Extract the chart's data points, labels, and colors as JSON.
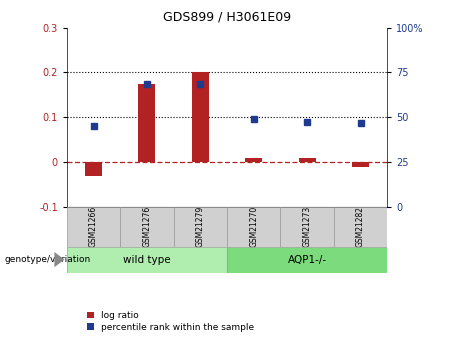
{
  "title": "GDS899 / H3061E09",
  "samples": [
    "GSM21266",
    "GSM21276",
    "GSM21279",
    "GSM21270",
    "GSM21273",
    "GSM21282"
  ],
  "group_labels": [
    "wild type",
    "AQP1-/-"
  ],
  "log_ratio": [
    -0.03,
    0.175,
    0.2,
    0.01,
    0.01,
    -0.01
  ],
  "percentile_rank_left": [
    0.08,
    0.175,
    0.175,
    0.097,
    0.09,
    0.088
  ],
  "ylim_left": [
    -0.1,
    0.3
  ],
  "ylim_right": [
    0,
    100
  ],
  "bar_color": "#B22222",
  "dot_color": "#1F3B8F",
  "hline_color": "#B22222",
  "dotted_lines": [
    0.1,
    0.2
  ],
  "right_ticks": [
    0,
    25,
    50,
    75,
    100
  ],
  "right_tick_labels": [
    "0",
    "25",
    "50",
    "75",
    "100%"
  ],
  "left_ticks": [
    -0.1,
    0,
    0.1,
    0.2,
    0.3
  ],
  "left_tick_labels": [
    "-0.1",
    "0",
    "0.1",
    "0.2",
    "0.3"
  ],
  "xlabel": "genotype/variation",
  "legend_log_ratio": "log ratio",
  "legend_percentile": "percentile rank within the sample",
  "sample_box_color": "#D0D0D0",
  "sample_box_edge": "#999999",
  "group_box_color_wt": "#B0EEB0",
  "group_box_color_aqp": "#7CDB7C"
}
